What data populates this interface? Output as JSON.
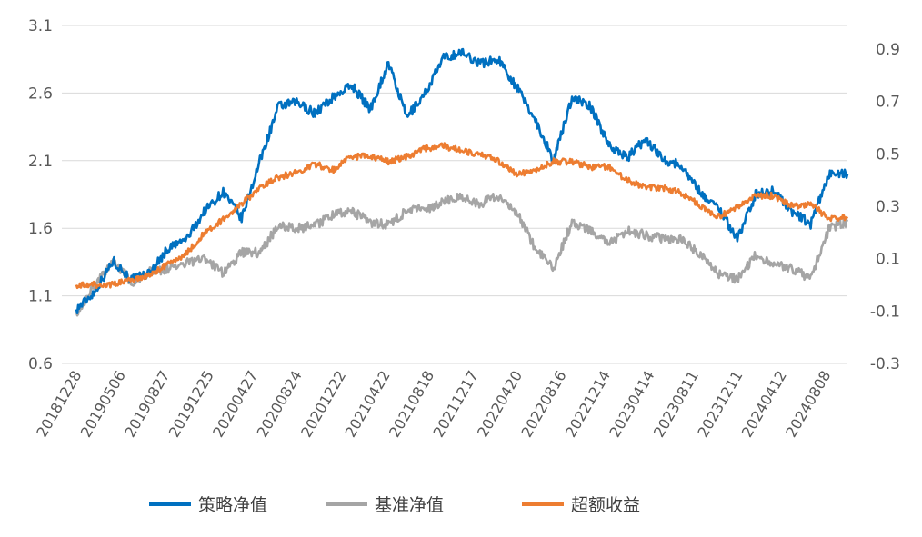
{
  "chart_data": {
    "type": "line",
    "title": "",
    "xlabel": "",
    "ylabel": "",
    "left_axis": {
      "ylim": [
        0.6,
        3.1
      ],
      "ticks": [
        "3.1",
        "2.6",
        "2.1",
        "1.6",
        "1.1",
        "0.6"
      ],
      "tick_values": [
        3.1,
        2.6,
        2.1,
        1.6,
        1.1,
        0.6
      ]
    },
    "right_axis": {
      "ylim": [
        -0.3,
        0.99
      ],
      "ticks": [
        "0.9",
        "0.7",
        "0.5",
        "0.3",
        "0.1",
        "-0.1",
        "-0.3"
      ],
      "tick_values": [
        0.9,
        0.7,
        0.5,
        0.3,
        0.1,
        -0.1,
        -0.3
      ]
    },
    "x_tick_labels": [
      "20181228",
      "20190506",
      "20190827",
      "20191225",
      "20200427",
      "20200824",
      "20201222",
      "20210422",
      "20210818",
      "20211217",
      "20220420",
      "20220816",
      "20221214",
      "20230414",
      "20230811",
      "20231211",
      "20240412",
      "20240808"
    ],
    "grid": true,
    "legend_position": "bottom",
    "series": [
      {
        "name": "策略净值",
        "axis": "left",
        "color": "#0070C0",
        "values": [
          1.0,
          1.13,
          1.36,
          1.22,
          1.27,
          1.45,
          1.52,
          1.73,
          1.87,
          1.67,
          2.1,
          2.5,
          2.53,
          2.45,
          2.57,
          2.66,
          2.48,
          2.82,
          2.42,
          2.6,
          2.86,
          2.9,
          2.82,
          2.85,
          2.64,
          2.4,
          2.1,
          2.57,
          2.5,
          2.22,
          2.12,
          2.26,
          2.11,
          2.06,
          1.86,
          1.75,
          1.52,
          1.85,
          1.88,
          1.72,
          1.63,
          2.0,
          2.0
        ]
      },
      {
        "name": "基准净值",
        "axis": "left",
        "color": "#A5A5A5",
        "values": [
          0.98,
          1.17,
          1.37,
          1.2,
          1.28,
          1.3,
          1.34,
          1.38,
          1.27,
          1.42,
          1.42,
          1.62,
          1.6,
          1.62,
          1.7,
          1.73,
          1.64,
          1.63,
          1.73,
          1.74,
          1.8,
          1.83,
          1.78,
          1.84,
          1.72,
          1.45,
          1.3,
          1.65,
          1.58,
          1.48,
          1.58,
          1.55,
          1.52,
          1.52,
          1.4,
          1.26,
          1.22,
          1.4,
          1.33,
          1.3,
          1.23,
          1.6,
          1.65
        ]
      },
      {
        "name": "超额收益",
        "axis": "right",
        "color": "#ED7D31",
        "values": [
          0.0,
          0.0,
          0.0,
          0.02,
          0.04,
          0.08,
          0.12,
          0.2,
          0.25,
          0.31,
          0.37,
          0.41,
          0.43,
          0.46,
          0.44,
          0.49,
          0.49,
          0.47,
          0.49,
          0.52,
          0.53,
          0.51,
          0.5,
          0.47,
          0.42,
          0.44,
          0.47,
          0.47,
          0.45,
          0.45,
          0.4,
          0.37,
          0.37,
          0.35,
          0.3,
          0.26,
          0.3,
          0.34,
          0.34,
          0.3,
          0.31,
          0.25,
          0.26
        ]
      }
    ]
  }
}
